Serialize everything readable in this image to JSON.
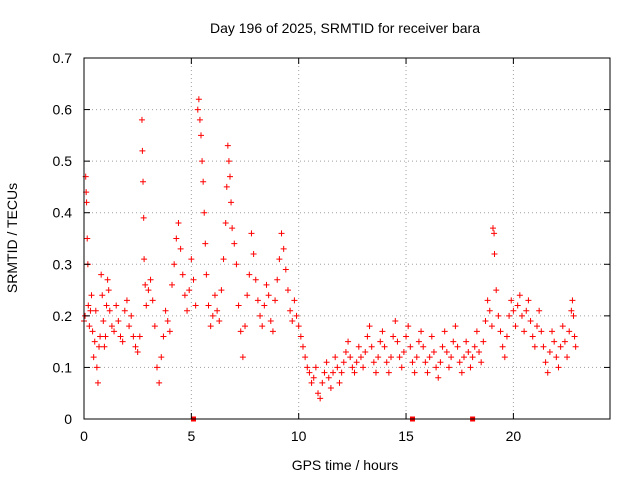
{
  "colors": {
    "data": "#ff0000",
    "grid": "#a0a0a0",
    "axis": "#000000",
    "background": "#ffffff"
  },
  "chart_data": {
    "type": "scatter",
    "title": "Day 196 of 2025, SRMTID for receiver bara",
    "xlabel": "GPS time / hours",
    "ylabel": "SRMTID / TECUs",
    "xlim": [
      0,
      24.5
    ],
    "ylim": [
      0,
      0.7
    ],
    "xticks": [
      0,
      5,
      10,
      15,
      20
    ],
    "xtick_labels": [
      "0",
      "5",
      "10",
      "15",
      "20"
    ],
    "yticks": [
      0,
      0.1,
      0.2,
      0.3,
      0.4,
      0.5,
      0.6,
      0.7
    ],
    "ytick_labels": [
      "0",
      "0.1",
      "0.2",
      "0.3",
      "0.4",
      "0.5",
      "0.6",
      "0.7"
    ],
    "grid": true,
    "marker": "plus",
    "gap_markers_x": [
      5.1,
      15.3,
      18.1
    ],
    "series": [
      {
        "name": "SRMTID",
        "points": [
          [
            0.0,
            0.19
          ],
          [
            0.05,
            0.2
          ],
          [
            0.08,
            0.47
          ],
          [
            0.1,
            0.44
          ],
          [
            0.12,
            0.42
          ],
          [
            0.15,
            0.35
          ],
          [
            0.18,
            0.3
          ],
          [
            0.2,
            0.22
          ],
          [
            0.25,
            0.18
          ],
          [
            0.3,
            0.21
          ],
          [
            0.35,
            0.24
          ],
          [
            0.4,
            0.17
          ],
          [
            0.45,
            0.12
          ],
          [
            0.5,
            0.15
          ],
          [
            0.55,
            0.21
          ],
          [
            0.6,
            0.1
          ],
          [
            0.65,
            0.07
          ],
          [
            0.7,
            0.14
          ],
          [
            0.75,
            0.16
          ],
          [
            0.8,
            0.28
          ],
          [
            0.85,
            0.24
          ],
          [
            0.9,
            0.19
          ],
          [
            0.95,
            0.14
          ],
          [
            1.0,
            0.16
          ],
          [
            1.05,
            0.22
          ],
          [
            1.1,
            0.27
          ],
          [
            1.15,
            0.25
          ],
          [
            1.2,
            0.21
          ],
          [
            1.3,
            0.18
          ],
          [
            1.4,
            0.17
          ],
          [
            1.5,
            0.22
          ],
          [
            1.6,
            0.19
          ],
          [
            1.7,
            0.16
          ],
          [
            1.8,
            0.15
          ],
          [
            1.9,
            0.21
          ],
          [
            2.0,
            0.23
          ],
          [
            2.1,
            0.18
          ],
          [
            2.2,
            0.2
          ],
          [
            2.3,
            0.16
          ],
          [
            2.4,
            0.14
          ],
          [
            2.5,
            0.13
          ],
          [
            2.6,
            0.16
          ],
          [
            2.7,
            0.58
          ],
          [
            2.72,
            0.52
          ],
          [
            2.75,
            0.46
          ],
          [
            2.78,
            0.39
          ],
          [
            2.8,
            0.31
          ],
          [
            2.85,
            0.26
          ],
          [
            2.9,
            0.22
          ],
          [
            3.0,
            0.25
          ],
          [
            3.1,
            0.27
          ],
          [
            3.2,
            0.23
          ],
          [
            3.3,
            0.18
          ],
          [
            3.4,
            0.1
          ],
          [
            3.5,
            0.07
          ],
          [
            3.6,
            0.12
          ],
          [
            3.7,
            0.16
          ],
          [
            3.8,
            0.21
          ],
          [
            3.9,
            0.19
          ],
          [
            4.0,
            0.17
          ],
          [
            4.1,
            0.26
          ],
          [
            4.2,
            0.3
          ],
          [
            4.3,
            0.35
          ],
          [
            4.4,
            0.38
          ],
          [
            4.5,
            0.33
          ],
          [
            4.6,
            0.28
          ],
          [
            4.7,
            0.24
          ],
          [
            4.8,
            0.21
          ],
          [
            4.9,
            0.25
          ],
          [
            5.0,
            0.31
          ],
          [
            5.1,
            0.27
          ],
          [
            5.2,
            0.22
          ],
          [
            5.3,
            0.6
          ],
          [
            5.35,
            0.62
          ],
          [
            5.4,
            0.58
          ],
          [
            5.45,
            0.55
          ],
          [
            5.5,
            0.5
          ],
          [
            5.55,
            0.46
          ],
          [
            5.6,
            0.4
          ],
          [
            5.65,
            0.34
          ],
          [
            5.7,
            0.28
          ],
          [
            5.8,
            0.22
          ],
          [
            5.9,
            0.18
          ],
          [
            6.0,
            0.2
          ],
          [
            6.1,
            0.24
          ],
          [
            6.2,
            0.21
          ],
          [
            6.3,
            0.19
          ],
          [
            6.4,
            0.25
          ],
          [
            6.5,
            0.31
          ],
          [
            6.6,
            0.38
          ],
          [
            6.65,
            0.45
          ],
          [
            6.7,
            0.53
          ],
          [
            6.75,
            0.5
          ],
          [
            6.8,
            0.47
          ],
          [
            6.85,
            0.42
          ],
          [
            6.9,
            0.37
          ],
          [
            7.0,
            0.34
          ],
          [
            7.1,
            0.3
          ],
          [
            7.2,
            0.22
          ],
          [
            7.3,
            0.17
          ],
          [
            7.4,
            0.12
          ],
          [
            7.5,
            0.18
          ],
          [
            7.6,
            0.24
          ],
          [
            7.7,
            0.28
          ],
          [
            7.8,
            0.36
          ],
          [
            7.9,
            0.32
          ],
          [
            8.0,
            0.27
          ],
          [
            8.1,
            0.23
          ],
          [
            8.2,
            0.2
          ],
          [
            8.3,
            0.18
          ],
          [
            8.4,
            0.22
          ],
          [
            8.5,
            0.26
          ],
          [
            8.6,
            0.24
          ],
          [
            8.7,
            0.19
          ],
          [
            8.8,
            0.17
          ],
          [
            8.9,
            0.23
          ],
          [
            9.0,
            0.27
          ],
          [
            9.1,
            0.31
          ],
          [
            9.2,
            0.36
          ],
          [
            9.3,
            0.33
          ],
          [
            9.4,
            0.29
          ],
          [
            9.5,
            0.25
          ],
          [
            9.6,
            0.21
          ],
          [
            9.7,
            0.19
          ],
          [
            9.8,
            0.23
          ],
          [
            9.9,
            0.2
          ],
          [
            10.0,
            0.18
          ],
          [
            10.1,
            0.16
          ],
          [
            10.2,
            0.14
          ],
          [
            10.3,
            0.12
          ],
          [
            10.4,
            0.1
          ],
          [
            10.5,
            0.09
          ],
          [
            10.6,
            0.07
          ],
          [
            10.7,
            0.08
          ],
          [
            10.8,
            0.1
          ],
          [
            10.9,
            0.05
          ],
          [
            11.0,
            0.04
          ],
          [
            11.1,
            0.07
          ],
          [
            11.2,
            0.09
          ],
          [
            11.3,
            0.11
          ],
          [
            11.4,
            0.08
          ],
          [
            11.5,
            0.06
          ],
          [
            11.6,
            0.09
          ],
          [
            11.7,
            0.12
          ],
          [
            11.8,
            0.1
          ],
          [
            11.9,
            0.07
          ],
          [
            12.0,
            0.09
          ],
          [
            12.1,
            0.11
          ],
          [
            12.2,
            0.13
          ],
          [
            12.3,
            0.15
          ],
          [
            12.4,
            0.12
          ],
          [
            12.5,
            0.1
          ],
          [
            12.6,
            0.09
          ],
          [
            12.7,
            0.11
          ],
          [
            12.8,
            0.14
          ],
          [
            12.9,
            0.12
          ],
          [
            13.0,
            0.1
          ],
          [
            13.1,
            0.13
          ],
          [
            13.2,
            0.16
          ],
          [
            13.3,
            0.18
          ],
          [
            13.4,
            0.14
          ],
          [
            13.5,
            0.11
          ],
          [
            13.6,
            0.09
          ],
          [
            13.7,
            0.12
          ],
          [
            13.8,
            0.15
          ],
          [
            13.9,
            0.17
          ],
          [
            14.0,
            0.14
          ],
          [
            14.1,
            0.11
          ],
          [
            14.2,
            0.09
          ],
          [
            14.3,
            0.12
          ],
          [
            14.4,
            0.16
          ],
          [
            14.5,
            0.19
          ],
          [
            14.6,
            0.15
          ],
          [
            14.7,
            0.12
          ],
          [
            14.8,
            0.1
          ],
          [
            14.9,
            0.13
          ],
          [
            15.0,
            0.16
          ],
          [
            15.1,
            0.18
          ],
          [
            15.2,
            0.14
          ],
          [
            15.3,
            0.11
          ],
          [
            15.4,
            0.09
          ],
          [
            15.5,
            0.12
          ],
          [
            15.6,
            0.15
          ],
          [
            15.7,
            0.17
          ],
          [
            15.8,
            0.14
          ],
          [
            15.9,
            0.11
          ],
          [
            16.0,
            0.09
          ],
          [
            16.1,
            0.12
          ],
          [
            16.2,
            0.16
          ],
          [
            16.3,
            0.13
          ],
          [
            16.4,
            0.1
          ],
          [
            16.5,
            0.08
          ],
          [
            16.6,
            0.11
          ],
          [
            16.7,
            0.14
          ],
          [
            16.8,
            0.17
          ],
          [
            16.9,
            0.13
          ],
          [
            17.0,
            0.1
          ],
          [
            17.1,
            0.12
          ],
          [
            17.2,
            0.15
          ],
          [
            17.3,
            0.18
          ],
          [
            17.4,
            0.14
          ],
          [
            17.5,
            0.11
          ],
          [
            17.6,
            0.09
          ],
          [
            17.7,
            0.12
          ],
          [
            17.8,
            0.15
          ],
          [
            17.9,
            0.13
          ],
          [
            18.0,
            0.1
          ],
          [
            18.1,
            0.12
          ],
          [
            18.2,
            0.14
          ],
          [
            18.3,
            0.17
          ],
          [
            18.4,
            0.13
          ],
          [
            18.5,
            0.11
          ],
          [
            18.6,
            0.15
          ],
          [
            18.7,
            0.19
          ],
          [
            18.8,
            0.23
          ],
          [
            18.9,
            0.21
          ],
          [
            19.0,
            0.18
          ],
          [
            19.05,
            0.37
          ],
          [
            19.1,
            0.36
          ],
          [
            19.12,
            0.32
          ],
          [
            19.2,
            0.25
          ],
          [
            19.3,
            0.2
          ],
          [
            19.4,
            0.17
          ],
          [
            19.5,
            0.14
          ],
          [
            19.6,
            0.12
          ],
          [
            19.7,
            0.16
          ],
          [
            19.8,
            0.2
          ],
          [
            19.9,
            0.23
          ],
          [
            20.0,
            0.21
          ],
          [
            20.1,
            0.18
          ],
          [
            20.2,
            0.22
          ],
          [
            20.3,
            0.24
          ],
          [
            20.4,
            0.2
          ],
          [
            20.5,
            0.17
          ],
          [
            20.6,
            0.21
          ],
          [
            20.7,
            0.23
          ],
          [
            20.8,
            0.19
          ],
          [
            20.9,
            0.16
          ],
          [
            21.0,
            0.14
          ],
          [
            21.1,
            0.18
          ],
          [
            21.2,
            0.21
          ],
          [
            21.3,
            0.17
          ],
          [
            21.4,
            0.14
          ],
          [
            21.5,
            0.11
          ],
          [
            21.6,
            0.09
          ],
          [
            21.7,
            0.13
          ],
          [
            21.8,
            0.17
          ],
          [
            21.9,
            0.15
          ],
          [
            22.0,
            0.12
          ],
          [
            22.1,
            0.1
          ],
          [
            22.2,
            0.14
          ],
          [
            22.3,
            0.18
          ],
          [
            22.4,
            0.15
          ],
          [
            22.5,
            0.12
          ],
          [
            22.6,
            0.17
          ],
          [
            22.7,
            0.21
          ],
          [
            22.75,
            0.23
          ],
          [
            22.8,
            0.2
          ],
          [
            22.85,
            0.16
          ],
          [
            22.9,
            0.14
          ]
        ]
      }
    ]
  }
}
